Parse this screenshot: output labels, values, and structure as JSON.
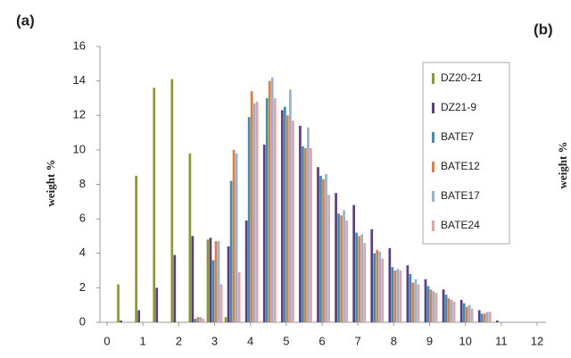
{
  "chart_data": {
    "type": "bar",
    "panel_label": "(a)",
    "ylabel": "weight %",
    "x": [
      0.5,
      1.0,
      1.5,
      2.0,
      2.5,
      3.0,
      3.5,
      4.0,
      4.5,
      5.0,
      5.5,
      6.0,
      6.5,
      7.0,
      7.5,
      8.0,
      8.5,
      9.0,
      9.5,
      10.0,
      10.5,
      11.0
    ],
    "series": [
      {
        "name": "DZ20-21",
        "color": "#8c9a2c",
        "values": [
          2.2,
          8.5,
          13.6,
          14.1,
          9.8,
          4.8,
          0.3,
          0,
          0,
          0,
          0,
          0,
          0,
          0,
          0,
          0,
          0,
          0,
          0,
          0,
          0,
          0
        ]
      },
      {
        "name": "DZ21-9",
        "color": "#5a3d8a",
        "values": [
          0.1,
          0.7,
          2.0,
          3.9,
          5.0,
          4.9,
          4.4,
          5.9,
          10.3,
          12.3,
          11.4,
          9.0,
          7.5,
          6.8,
          5.4,
          4.3,
          3.3,
          2.5,
          1.9,
          1.3,
          0.7,
          0.1
        ]
      },
      {
        "name": "BATE7",
        "color": "#3b8fb0",
        "values": [
          0,
          0,
          0,
          0,
          0.2,
          3.6,
          8.2,
          11.9,
          13.0,
          12.5,
          10.2,
          8.5,
          6.3,
          5.2,
          4.0,
          3.2,
          2.8,
          2.1,
          1.6,
          1.1,
          0.5,
          0
        ]
      },
      {
        "name": "BATE12",
        "color": "#e27d3c",
        "values": [
          0,
          0,
          0,
          0,
          0.3,
          4.7,
          10.0,
          13.4,
          14.0,
          12.0,
          10.1,
          8.3,
          6.2,
          5.0,
          4.2,
          3.0,
          2.3,
          1.9,
          1.4,
          0.9,
          0.5,
          0
        ]
      },
      {
        "name": "BATE17",
        "color": "#92b2da",
        "values": [
          0,
          0,
          0,
          0,
          0.3,
          4.7,
          9.8,
          12.7,
          14.2,
          13.5,
          11.3,
          8.6,
          6.5,
          5.1,
          4.1,
          3.1,
          2.5,
          1.8,
          1.3,
          1.0,
          0.6,
          0
        ]
      },
      {
        "name": "BATE24",
        "color": "#e3a3a0",
        "values": [
          0,
          0,
          0,
          0,
          0.2,
          2.2,
          2.9,
          12.8,
          13.0,
          11.7,
          10.1,
          7.4,
          5.9,
          4.6,
          3.7,
          3.0,
          2.2,
          1.7,
          1.2,
          0.8,
          0.6,
          0
        ]
      }
    ],
    "xlim": [
      0,
      12
    ],
    "xticks": [
      0,
      1,
      2,
      3,
      4,
      5,
      6,
      7,
      8,
      9,
      10,
      11,
      12
    ],
    "ylim": [
      0,
      16
    ],
    "yticks": [
      0,
      2,
      4,
      6,
      8,
      10,
      12,
      14,
      16
    ],
    "grid": false,
    "legend": "upper right"
  },
  "next_panel": {
    "panel_label": "(b)",
    "ylabel": "weight %"
  }
}
